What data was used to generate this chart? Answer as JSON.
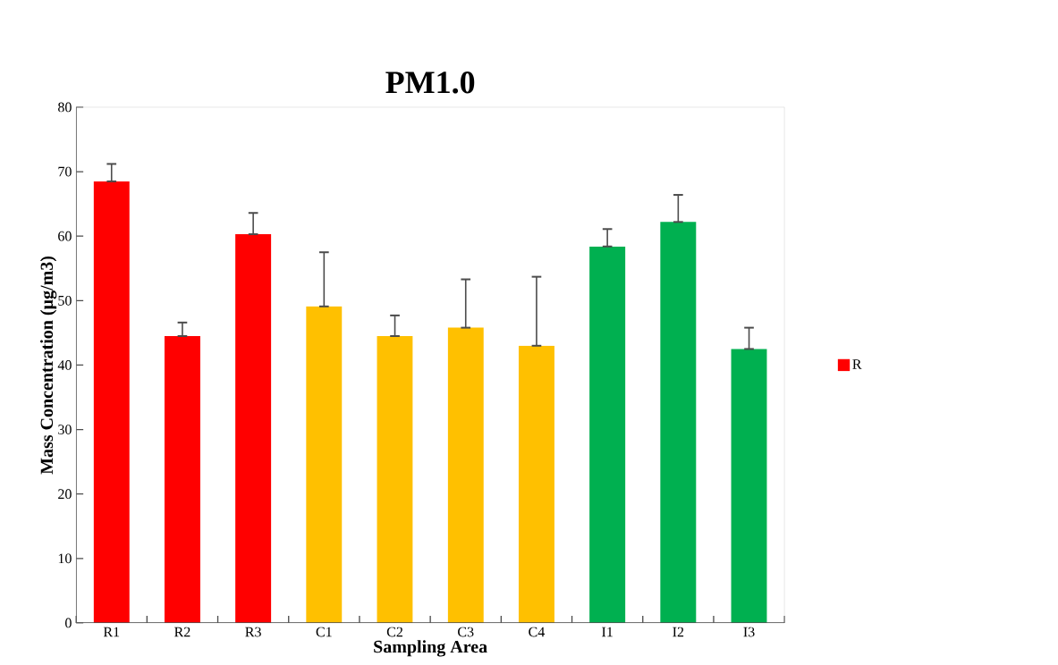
{
  "chart_data": {
    "type": "bar",
    "title": "PM1.0",
    "xlabel": "Sampling Area",
    "ylabel": "Mass Concentration (µg/m3)",
    "categories": [
      "R1",
      "R2",
      "R3",
      "C1",
      "C2",
      "C3",
      "C4",
      "I1",
      "I2",
      "I3"
    ],
    "series": [
      {
        "name": "R",
        "color": "#ff0000",
        "colors": [
          "#ff0000",
          "#ff0000",
          "#ff0000",
          "#ffc000",
          "#ffc000",
          "#ffc000",
          "#ffc000",
          "#00b050",
          "#00b050",
          "#00b050"
        ],
        "values": [
          68.5,
          44.5,
          60.3,
          49.1,
          44.5,
          45.8,
          43.0,
          58.4,
          62.2,
          42.5
        ],
        "errors": [
          [
            68.5,
            71.2
          ],
          [
            44.5,
            46.6
          ],
          [
            60.3,
            63.6
          ],
          [
            49.1,
            57.5
          ],
          [
            44.5,
            47.7
          ],
          [
            45.8,
            53.3
          ],
          [
            43.0,
            53.7
          ],
          [
            58.4,
            61.1
          ],
          [
            62.2,
            66.4
          ],
          [
            42.5,
            45.8
          ]
        ]
      }
    ],
    "ylim": [
      0,
      80
    ],
    "yticks": [
      0,
      10,
      20,
      30,
      40,
      50,
      60,
      70,
      80
    ],
    "grid": false,
    "legend": "right"
  }
}
